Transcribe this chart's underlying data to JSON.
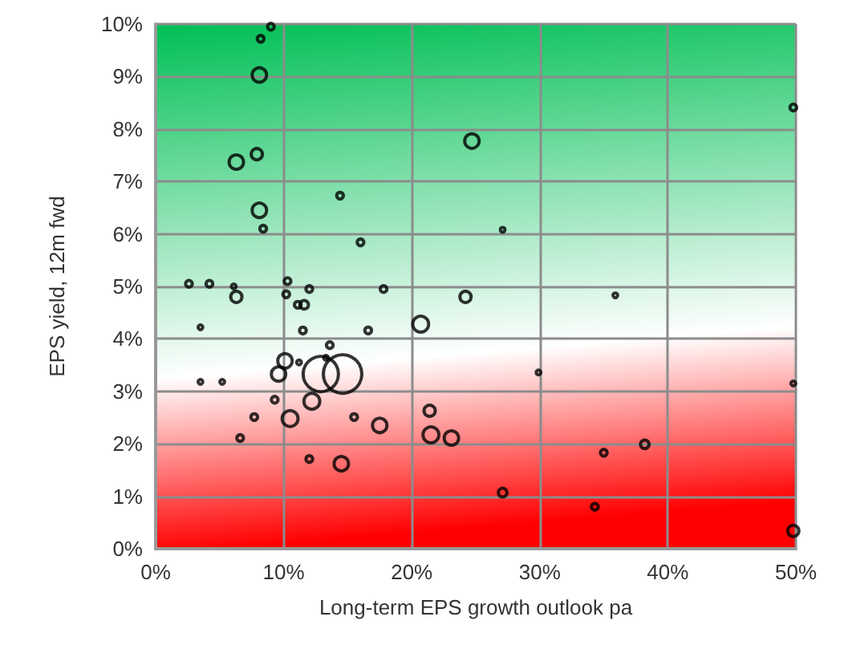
{
  "chart_data": {
    "type": "bubble",
    "xlabel": "Long-term EPS growth outlook pa",
    "ylabel": "EPS yield, 12m fwd",
    "x": [
      9.0,
      8.2,
      8.1,
      24.7,
      6.3,
      7.9,
      8.1,
      8.4,
      14.4,
      16.0,
      27.1,
      49.8,
      2.6,
      4.2,
      6.1,
      6.3,
      10.3,
      10.2,
      12.0,
      11.1,
      11.6,
      17.8,
      24.2,
      35.9,
      3.5,
      11.5,
      16.6,
      20.7,
      13.6,
      10.1,
      9.6,
      11.2,
      13.3,
      12.9,
      14.6,
      3.5,
      5.2,
      29.9,
      49.8,
      12.2,
      10.5,
      7.7,
      9.3,
      17.5,
      15.5,
      21.4,
      21.5,
      23.1,
      6.6,
      12.0,
      14.5,
      27.1,
      35.0,
      38.2,
      34.3,
      49.8
    ],
    "values": [
      9.95,
      9.72,
      9.03,
      7.77,
      7.37,
      7.52,
      6.45,
      6.1,
      6.73,
      5.84,
      6.08,
      8.41,
      5.05,
      5.05,
      5.0,
      4.8,
      5.1,
      4.85,
      4.95,
      4.65,
      4.65,
      4.95,
      4.8,
      4.83,
      4.22,
      4.16,
      4.16,
      4.28,
      3.88,
      3.58,
      3.33,
      3.55,
      3.64,
      3.33,
      3.33,
      3.18,
      3.18,
      3.36,
      3.15,
      2.81,
      2.48,
      2.51,
      2.84,
      2.35,
      2.51,
      2.63,
      2.17,
      2.11,
      2.11,
      1.71,
      1.62,
      1.07,
      1.83,
      1.99,
      0.8,
      0.34
    ],
    "sizes": [
      0.03,
      0.03,
      0.14,
      0.14,
      0.14,
      0.085,
      0.14,
      0.03,
      0.03,
      0.03,
      0.015,
      0.03,
      0.03,
      0.03,
      0.015,
      0.085,
      0.03,
      0.03,
      0.03,
      0.03,
      0.05,
      0.03,
      0.085,
      0.015,
      0.015,
      0.03,
      0.03,
      0.17,
      0.03,
      0.14,
      0.14,
      0.015,
      0.015,
      0.84,
      1,
      0.015,
      0.015,
      0.015,
      0.015,
      0.17,
      0.17,
      0.03,
      0.03,
      0.14,
      0.03,
      0.085,
      0.17,
      0.14,
      0.03,
      0.03,
      0.14,
      0.05,
      0.03,
      0.05,
      0.03,
      0.085
    ],
    "color": "#000000",
    "marker": "circle",
    "grid": true,
    "xlim": [
      0,
      50
    ],
    "xticks": [
      {
        "value": 0,
        "label": "0%"
      },
      {
        "value": 10,
        "label": "10%"
      },
      {
        "value": 20,
        "label": "20%"
      },
      {
        "value": 30,
        "label": "30%"
      },
      {
        "value": 40,
        "label": "40%"
      },
      {
        "value": 50,
        "label": "50%"
      }
    ],
    "ylim": [
      0,
      10
    ],
    "yticks": [
      {
        "value": 0,
        "label": "0%"
      },
      {
        "value": 1,
        "label": "1%"
      },
      {
        "value": 2,
        "label": "2%"
      },
      {
        "value": 3,
        "label": "3%"
      },
      {
        "value": 4,
        "label": "4%"
      },
      {
        "value": 5,
        "label": "5%"
      },
      {
        "value": 6,
        "label": "6%"
      },
      {
        "value": 7,
        "label": "7%"
      },
      {
        "value": 8,
        "label": "8%"
      },
      {
        "value": 9,
        "label": "9%"
      },
      {
        "value": 10,
        "label": "10%"
      }
    ]
  }
}
